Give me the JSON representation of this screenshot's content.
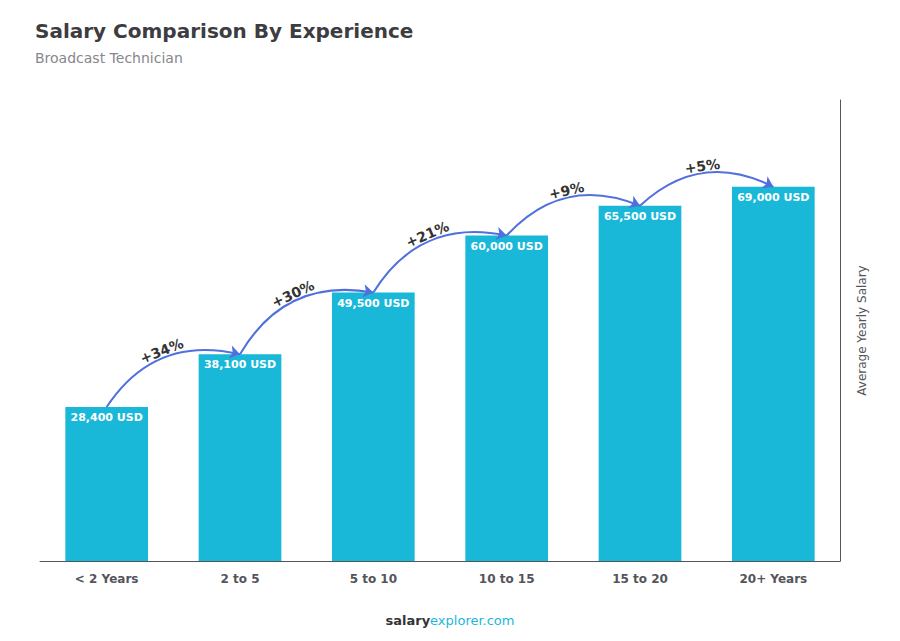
{
  "chart_data": {
    "type": "bar",
    "title": "Salary Comparison By Experience",
    "subtitle": "Broadcast Technician",
    "categories": [
      "< 2 Years",
      "2 to 5",
      "5 to 10",
      "10 to 15",
      "15 to 20",
      "20+ Years"
    ],
    "values": [
      28400,
      38100,
      49500,
      60000,
      65500,
      69000
    ],
    "value_labels": [
      "28,400 USD",
      "38,100 USD",
      "49,500 USD",
      "60,000 USD",
      "65,500 USD",
      "69,000 USD"
    ],
    "data_labels": true,
    "color": "#1ab8d8",
    "ylabel": "Average Yearly Salary",
    "ylim": [
      0,
      85000
    ],
    "tick_labels": "x",
    "grid": false,
    "annotations": [
      {
        "text": "+34%",
        "from": "< 2 Years",
        "to": "2 to 5"
      },
      {
        "text": "+30%",
        "from": "2 to 5",
        "to": "5 to 10"
      },
      {
        "text": "+21%",
        "from": "5 to 10",
        "to": "10 to 15"
      },
      {
        "text": "+9%",
        "from": "10 to 15",
        "to": "15 to 20"
      },
      {
        "text": "+5%",
        "from": "15 to 20",
        "to": "20+ Years"
      }
    ],
    "footer": [
      "salary",
      "explorer.com"
    ]
  }
}
